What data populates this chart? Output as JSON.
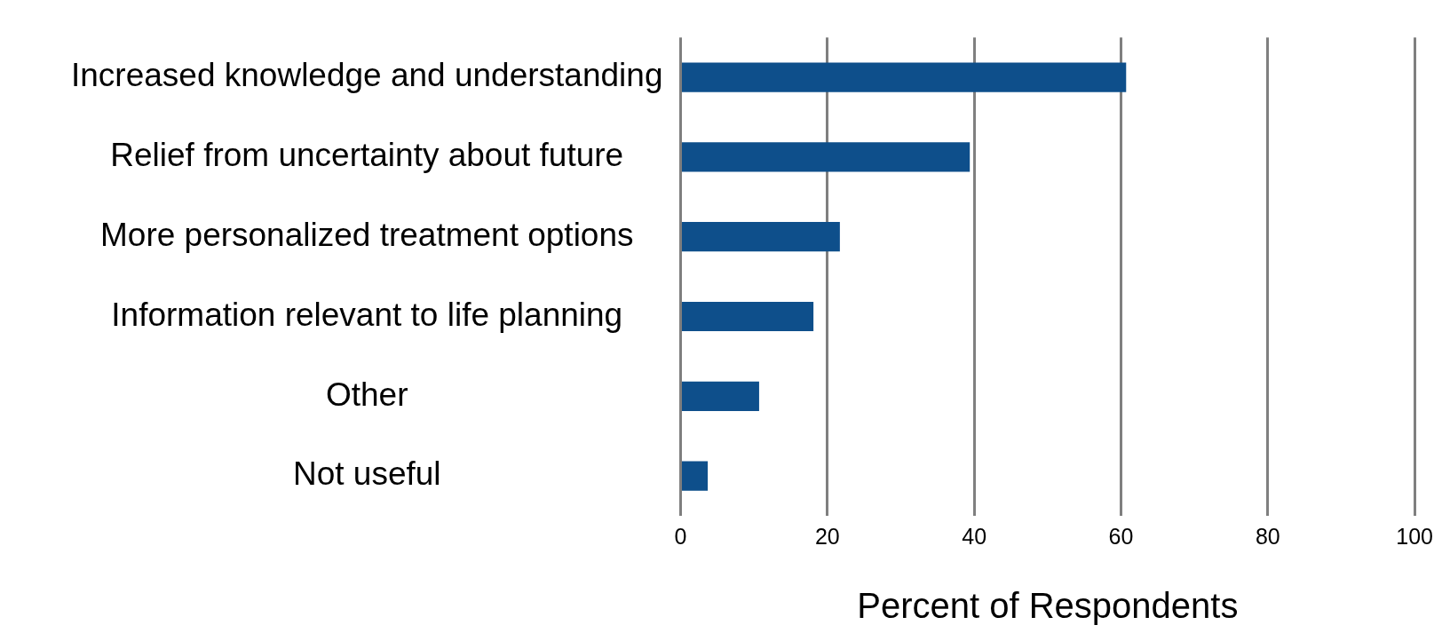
{
  "chart_data": {
    "type": "bar",
    "orientation": "horizontal",
    "xlabel": "Percent of Respondents",
    "categories": [
      "Increased knowledge and understanding",
      "Relief from uncertainty about future",
      "More personalized treatment options",
      "Information relevant to life planning",
      "Other",
      "Not useful"
    ],
    "values": [
      60.7,
      39.4,
      21.7,
      18.1,
      10.7,
      3.7
    ],
    "color": "#0e4f8b",
    "xlim": [
      0,
      100
    ],
    "xticks": [
      0,
      20,
      40,
      60,
      80,
      100
    ],
    "grid": "x",
    "legend": false
  }
}
